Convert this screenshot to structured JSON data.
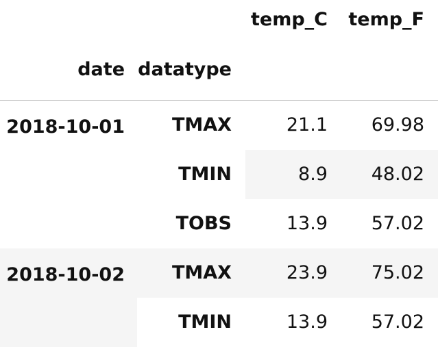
{
  "table": {
    "columns": {
      "index_names": [
        "date",
        "datatype"
      ],
      "value_columns": [
        "temp_C",
        "temp_F"
      ]
    },
    "groups": [
      {
        "date": "2018-10-01",
        "rows": [
          {
            "datatype": "TMAX",
            "temp_C": "21.1",
            "temp_F": "69.98"
          },
          {
            "datatype": "TMIN",
            "temp_C": "8.9",
            "temp_F": "48.02"
          },
          {
            "datatype": "TOBS",
            "temp_C": "13.9",
            "temp_F": "57.02"
          }
        ]
      },
      {
        "date": "2018-10-02",
        "rows": [
          {
            "datatype": "TMAX",
            "temp_C": "23.9",
            "temp_F": "75.02"
          },
          {
            "datatype": "TMIN",
            "temp_C": "13.9",
            "temp_F": "57.02"
          }
        ]
      }
    ]
  },
  "colors": {
    "stripe": "#f5f5f5",
    "header_rule": "#bdbdbd",
    "text": "#111111"
  }
}
